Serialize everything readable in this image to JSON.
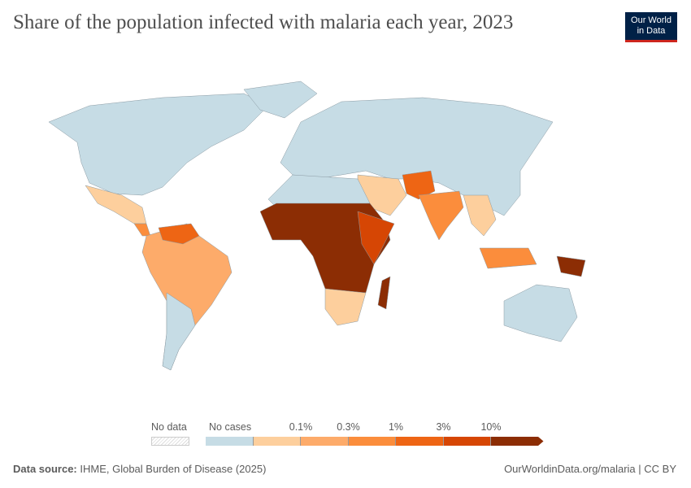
{
  "title": "Share of the population infected with malaria each year, 2023",
  "logo": {
    "line1": "Our World",
    "line2": "in Data"
  },
  "legend": {
    "no_data_label": "No data",
    "bins": [
      {
        "label": "No cases",
        "color": "#c6dce5"
      },
      {
        "label": "0.1%",
        "color": "#fdcf9d"
      },
      {
        "label": "0.3%",
        "color": "#fdab6a"
      },
      {
        "label": "1%",
        "color": "#fb8d3c"
      },
      {
        "label": "3%",
        "color": "#ee6514"
      },
      {
        "label": "10%",
        "color": "#d64604"
      },
      {
        "label": "",
        "color": "#8c2d04"
      }
    ]
  },
  "footer": {
    "source_label": "Data source:",
    "source": "IHME, Global Burden of Disease (2025)",
    "url": "OurWorldinData.org/malaria | CC BY"
  }
}
